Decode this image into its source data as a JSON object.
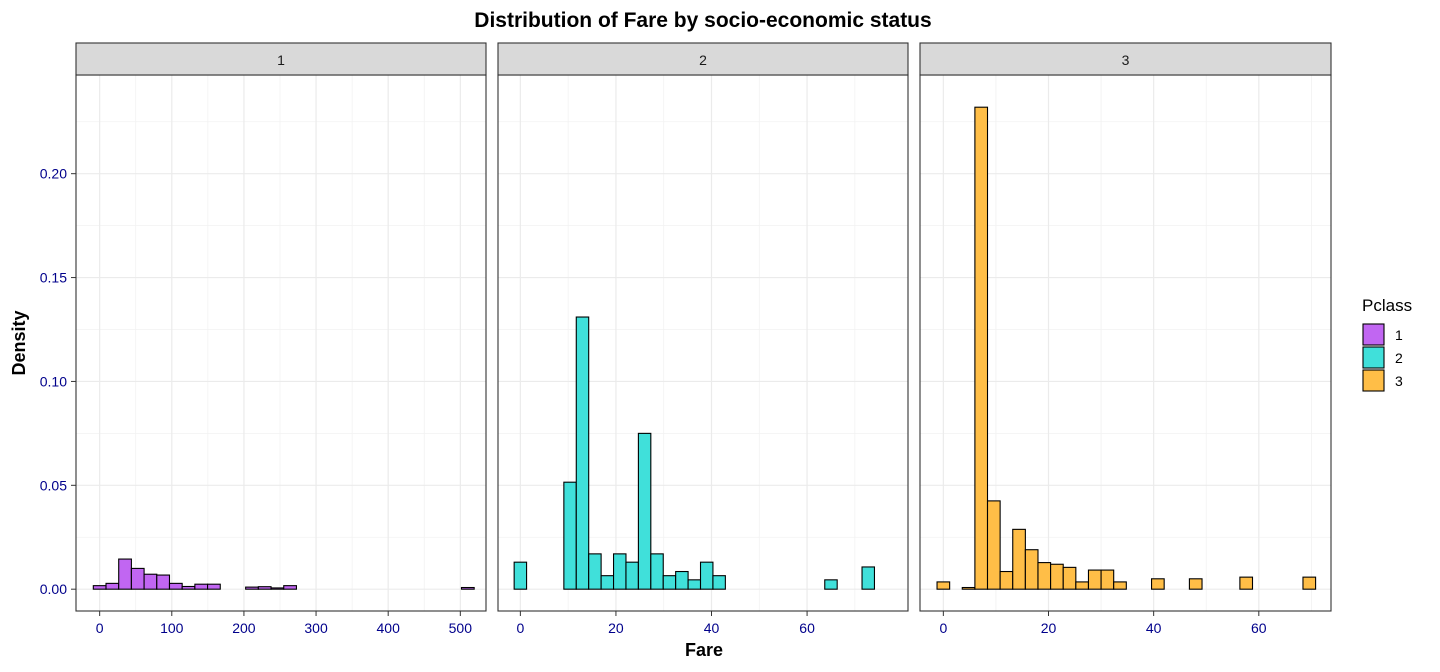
{
  "chart_data": {
    "type": "bar",
    "subtype": "faceted-histogram",
    "title": "Distribution of Fare by socio-economic status",
    "xlabel": "Fare",
    "ylabel": "Density",
    "ylim": [
      -0.0105,
      0.2475
    ],
    "y_ticks": [
      0.0,
      0.05,
      0.1,
      0.15,
      0.2
    ],
    "y_tick_labels": [
      "0.00",
      "0.05",
      "0.10",
      "0.15",
      "0.20"
    ],
    "legend": {
      "title": "Pclass",
      "position": "right",
      "entries": [
        {
          "label": "1",
          "color": "#C166F2"
        },
        {
          "label": "2",
          "color": "#40E0DA"
        },
        {
          "label": "3",
          "color": "#FFBE47"
        }
      ]
    },
    "bar_outline_color": "#000000",
    "facets": [
      {
        "strip": "1",
        "color": "#C166F2",
        "xlim": [
          -32.8,
          535.6
        ],
        "x_ticks": [
          0,
          100,
          200,
          300,
          400,
          500
        ],
        "x_tick_labels": [
          "0",
          "100",
          "200",
          "300",
          "400",
          "500"
        ],
        "bins": [
          {
            "x0": -8.8,
            "x1": 8.8,
            "y": 0.0017
          },
          {
            "x0": 8.8,
            "x1": 26.4,
            "y": 0.0028
          },
          {
            "x0": 26.4,
            "x1": 44.0,
            "y": 0.0145
          },
          {
            "x0": 44.0,
            "x1": 61.6,
            "y": 0.01
          },
          {
            "x0": 61.6,
            "x1": 79.2,
            "y": 0.0072
          },
          {
            "x0": 79.2,
            "x1": 96.8,
            "y": 0.0068
          },
          {
            "x0": 96.8,
            "x1": 114.4,
            "y": 0.0028
          },
          {
            "x0": 114.4,
            "x1": 132.0,
            "y": 0.0013
          },
          {
            "x0": 132.0,
            "x1": 149.6,
            "y": 0.0024
          },
          {
            "x0": 149.6,
            "x1": 167.2,
            "y": 0.0024
          },
          {
            "x0": 167.2,
            "x1": 184.8,
            "y": 0.0
          },
          {
            "x0": 184.8,
            "x1": 202.4,
            "y": 0.0
          },
          {
            "x0": 202.4,
            "x1": 220.0,
            "y": 0.001
          },
          {
            "x0": 220.0,
            "x1": 237.6,
            "y": 0.0012
          },
          {
            "x0": 237.6,
            "x1": 255.2,
            "y": 0.0006
          },
          {
            "x0": 255.2,
            "x1": 272.8,
            "y": 0.0017
          },
          {
            "x0": 272.8,
            "x1": 290.4,
            "y": 0.0
          },
          {
            "x0": 290.4,
            "x1": 308.0,
            "y": 0.0
          },
          {
            "x0": 308.0,
            "x1": 325.6,
            "y": 0.0
          },
          {
            "x0": 325.6,
            "x1": 343.2,
            "y": 0.0
          },
          {
            "x0": 343.2,
            "x1": 360.8,
            "y": 0.0
          },
          {
            "x0": 360.8,
            "x1": 378.4,
            "y": 0.0
          },
          {
            "x0": 378.4,
            "x1": 396.0,
            "y": 0.0
          },
          {
            "x0": 396.0,
            "x1": 413.6,
            "y": 0.0
          },
          {
            "x0": 413.6,
            "x1": 431.2,
            "y": 0.0
          },
          {
            "x0": 431.2,
            "x1": 448.8,
            "y": 0.0
          },
          {
            "x0": 448.8,
            "x1": 466.4,
            "y": 0.0
          },
          {
            "x0": 466.4,
            "x1": 484.0,
            "y": 0.0
          },
          {
            "x0": 484.0,
            "x1": 501.6,
            "y": 0.0
          },
          {
            "x0": 501.6,
            "x1": 519.2,
            "y": 0.0008
          }
        ]
      },
      {
        "strip": "2",
        "color": "#40E0DA",
        "xlim": [
          -4.68,
          81.12
        ],
        "x_ticks": [
          0,
          20,
          40,
          60
        ],
        "x_tick_labels": [
          "0",
          "20",
          "40",
          "60"
        ],
        "bins": [
          {
            "x0": -1.3,
            "x1": 1.3,
            "y": 0.013
          },
          {
            "x0": 1.3,
            "x1": 3.9,
            "y": 0.0
          },
          {
            "x0": 3.9,
            "x1": 6.5,
            "y": 0.0
          },
          {
            "x0": 6.5,
            "x1": 9.1,
            "y": 0.0
          },
          {
            "x0": 9.1,
            "x1": 11.7,
            "y": 0.0515
          },
          {
            "x0": 11.7,
            "x1": 14.3,
            "y": 0.131
          },
          {
            "x0": 14.3,
            "x1": 16.9,
            "y": 0.017
          },
          {
            "x0": 16.9,
            "x1": 19.5,
            "y": 0.0065
          },
          {
            "x0": 19.5,
            "x1": 22.1,
            "y": 0.017
          },
          {
            "x0": 22.1,
            "x1": 24.7,
            "y": 0.013
          },
          {
            "x0": 24.7,
            "x1": 27.3,
            "y": 0.075
          },
          {
            "x0": 27.3,
            "x1": 29.9,
            "y": 0.017
          },
          {
            "x0": 29.9,
            "x1": 32.5,
            "y": 0.0065
          },
          {
            "x0": 32.5,
            "x1": 35.1,
            "y": 0.0085
          },
          {
            "x0": 35.1,
            "x1": 37.7,
            "y": 0.0045
          },
          {
            "x0": 37.7,
            "x1": 40.3,
            "y": 0.013
          },
          {
            "x0": 40.3,
            "x1": 42.9,
            "y": 0.0065
          },
          {
            "x0": 42.9,
            "x1": 45.5,
            "y": 0.0
          },
          {
            "x0": 45.5,
            "x1": 48.1,
            "y": 0.0
          },
          {
            "x0": 48.1,
            "x1": 50.7,
            "y": 0.0
          },
          {
            "x0": 50.7,
            "x1": 53.3,
            "y": 0.0
          },
          {
            "x0": 53.3,
            "x1": 55.9,
            "y": 0.0
          },
          {
            "x0": 55.9,
            "x1": 58.5,
            "y": 0.0
          },
          {
            "x0": 58.5,
            "x1": 61.1,
            "y": 0.0
          },
          {
            "x0": 61.1,
            "x1": 63.7,
            "y": 0.0
          },
          {
            "x0": 63.7,
            "x1": 66.3,
            "y": 0.0045
          },
          {
            "x0": 66.3,
            "x1": 68.9,
            "y": 0.0
          },
          {
            "x0": 68.9,
            "x1": 71.5,
            "y": 0.0
          },
          {
            "x0": 71.5,
            "x1": 74.1,
            "y": 0.0107
          }
        ]
      },
      {
        "strip": "3",
        "color": "#FFBE47",
        "xlim": [
          -4.44,
          73.73
        ],
        "x_ticks": [
          0,
          20,
          40,
          60
        ],
        "x_tick_labels": [
          "0",
          "20",
          "40",
          "60"
        ],
        "bins": [
          {
            "x0": -1.2,
            "x1": 1.2,
            "y": 0.0035
          },
          {
            "x0": 1.2,
            "x1": 3.6,
            "y": 0.0
          },
          {
            "x0": 3.6,
            "x1": 6.0,
            "y": 0.0008
          },
          {
            "x0": 6.0,
            "x1": 8.4,
            "y": 0.232
          },
          {
            "x0": 8.4,
            "x1": 10.8,
            "y": 0.0425
          },
          {
            "x0": 10.8,
            "x1": 13.2,
            "y": 0.0085
          },
          {
            "x0": 13.2,
            "x1": 15.6,
            "y": 0.0288
          },
          {
            "x0": 15.6,
            "x1": 18.0,
            "y": 0.019
          },
          {
            "x0": 18.0,
            "x1": 20.4,
            "y": 0.0128
          },
          {
            "x0": 20.4,
            "x1": 22.8,
            "y": 0.012
          },
          {
            "x0": 22.8,
            "x1": 25.2,
            "y": 0.0105
          },
          {
            "x0": 25.2,
            "x1": 27.6,
            "y": 0.0035
          },
          {
            "x0": 27.6,
            "x1": 30.0,
            "y": 0.0092
          },
          {
            "x0": 30.0,
            "x1": 32.4,
            "y": 0.0092
          },
          {
            "x0": 32.4,
            "x1": 34.8,
            "y": 0.0035
          },
          {
            "x0": 34.8,
            "x1": 37.2,
            "y": 0.0
          },
          {
            "x0": 37.2,
            "x1": 39.6,
            "y": 0.0
          },
          {
            "x0": 39.6,
            "x1": 42.0,
            "y": 0.005
          },
          {
            "x0": 42.0,
            "x1": 44.4,
            "y": 0.0
          },
          {
            "x0": 44.4,
            "x1": 46.8,
            "y": 0.0
          },
          {
            "x0": 46.8,
            "x1": 49.2,
            "y": 0.005
          },
          {
            "x0": 49.2,
            "x1": 51.6,
            "y": 0.0
          },
          {
            "x0": 51.6,
            "x1": 54.0,
            "y": 0.0
          },
          {
            "x0": 54.0,
            "x1": 56.4,
            "y": 0.0
          },
          {
            "x0": 56.4,
            "x1": 58.8,
            "y": 0.0058
          },
          {
            "x0": 58.8,
            "x1": 61.2,
            "y": 0.0
          },
          {
            "x0": 61.2,
            "x1": 63.6,
            "y": 0.0
          },
          {
            "x0": 63.6,
            "x1": 66.0,
            "y": 0.0
          },
          {
            "x0": 66.0,
            "x1": 68.4,
            "y": 0.0
          },
          {
            "x0": 68.4,
            "x1": 70.8,
            "y": 0.0058
          }
        ]
      }
    ]
  }
}
